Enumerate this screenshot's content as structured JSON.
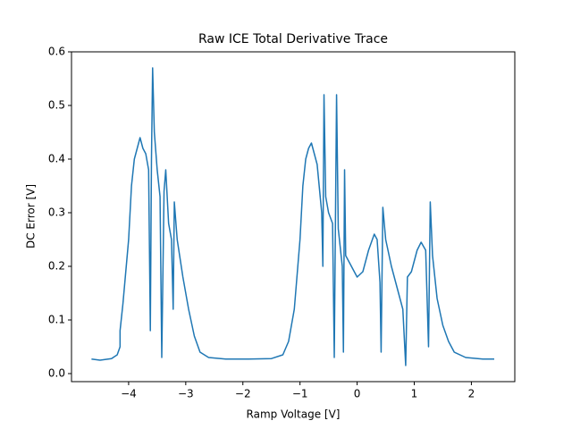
{
  "chart_data": {
    "type": "line",
    "title": "Raw ICE Total Derivative Trace",
    "xlabel": "Ramp Voltage [V]",
    "ylabel": "DC Error [V]",
    "color": "#1f77b4",
    "xlim": [
      -5.0,
      2.76
    ],
    "ylim": [
      -0.015,
      0.6
    ],
    "xticks": [
      {
        "value": -4,
        "label": "−4"
      },
      {
        "value": -3,
        "label": "−3"
      },
      {
        "value": -2,
        "label": "−2"
      },
      {
        "value": -1,
        "label": "−1"
      },
      0,
      1,
      2
    ],
    "yticks": [
      {
        "value": 0,
        "label": "0.0"
      },
      0.1,
      0.2,
      0.3,
      0.4,
      0.5,
      0.6
    ],
    "x": [
      -4.65,
      -4.5,
      -4.3,
      -4.2,
      -4.15,
      -4.15,
      -4.1,
      -4.0,
      -3.95,
      -3.9,
      -3.85,
      -3.8,
      -3.75,
      -3.7,
      -3.65,
      -3.62,
      -3.6,
      -3.58,
      -3.55,
      -3.5,
      -3.45,
      -3.42,
      -3.38,
      -3.35,
      -3.3,
      -3.25,
      -3.22,
      -3.2,
      -3.15,
      -3.05,
      -2.95,
      -2.85,
      -2.75,
      -2.6,
      -2.3,
      -1.9,
      -1.5,
      -1.3,
      -1.2,
      -1.1,
      -1.0,
      -0.95,
      -0.9,
      -0.85,
      -0.8,
      -0.75,
      -0.7,
      -0.62,
      -0.6,
      -0.58,
      -0.55,
      -0.5,
      -0.43,
      -0.4,
      -0.38,
      -0.36,
      -0.33,
      -0.28,
      -0.26,
      -0.24,
      -0.22,
      -0.2,
      -0.1,
      0.0,
      0.1,
      0.2,
      0.3,
      0.35,
      0.4,
      0.42,
      0.45,
      0.5,
      0.6,
      0.7,
      0.8,
      0.85,
      0.88,
      0.95,
      1.05,
      1.12,
      1.2,
      1.25,
      1.28,
      1.32,
      1.4,
      1.5,
      1.6,
      1.7,
      1.9,
      2.2,
      2.4
    ],
    "y": [
      0.027,
      0.025,
      0.028,
      0.035,
      0.05,
      0.08,
      0.13,
      0.25,
      0.35,
      0.4,
      0.42,
      0.44,
      0.42,
      0.41,
      0.38,
      0.08,
      0.4,
      0.57,
      0.45,
      0.38,
      0.33,
      0.03,
      0.34,
      0.38,
      0.28,
      0.25,
      0.12,
      0.32,
      0.25,
      0.18,
      0.12,
      0.07,
      0.04,
      0.03,
      0.027,
      0.027,
      0.028,
      0.035,
      0.06,
      0.12,
      0.25,
      0.35,
      0.4,
      0.42,
      0.43,
      0.41,
      0.39,
      0.3,
      0.2,
      0.52,
      0.33,
      0.3,
      0.28,
      0.03,
      0.28,
      0.52,
      0.27,
      0.22,
      0.2,
      0.04,
      0.38,
      0.22,
      0.2,
      0.18,
      0.19,
      0.23,
      0.26,
      0.25,
      0.17,
      0.04,
      0.31,
      0.25,
      0.2,
      0.16,
      0.12,
      0.015,
      0.18,
      0.19,
      0.23,
      0.245,
      0.23,
      0.05,
      0.32,
      0.22,
      0.14,
      0.09,
      0.06,
      0.04,
      0.03,
      0.027,
      0.027
    ]
  }
}
